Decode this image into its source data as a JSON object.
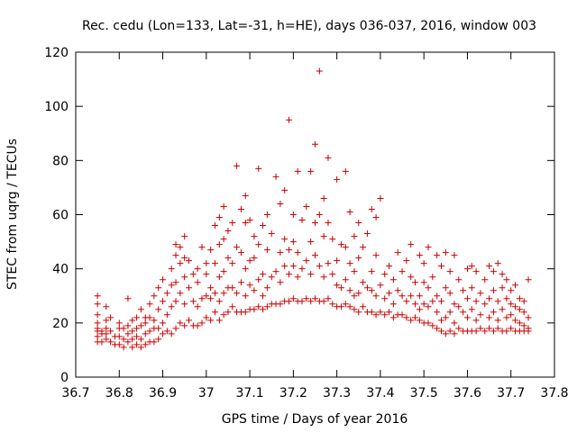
{
  "chart_data": {
    "type": "scatter",
    "title": "Rec. cedu (Lon=133, Lat=-31, h=HE), days 036-037, 2016, window 003",
    "xlabel": "GPS time / Days of year 2016",
    "ylabel": "STEC from uqrg / TECUs",
    "xlim": [
      36.7,
      37.8
    ],
    "ylim": [
      0,
      120
    ],
    "xticks": [
      "36.7",
      "36.8",
      "36.9",
      "37",
      "37.1",
      "37.2",
      "37.3",
      "37.4",
      "37.5",
      "37.6",
      "37.7",
      "37.8"
    ],
    "yticks": [
      "0",
      "20",
      "40",
      "60",
      "80",
      "100",
      "120"
    ],
    "grid": false,
    "marker": "plus",
    "color": "#cc0000",
    "points": [
      [
        36.75,
        13
      ],
      [
        36.75,
        15
      ],
      [
        36.75,
        17
      ],
      [
        36.75,
        18
      ],
      [
        36.75,
        20
      ],
      [
        36.75,
        23
      ],
      [
        36.75,
        27
      ],
      [
        36.75,
        30
      ],
      [
        36.76,
        13
      ],
      [
        36.76,
        16
      ],
      [
        36.76,
        17
      ],
      [
        36.77,
        14
      ],
      [
        36.77,
        16
      ],
      [
        36.77,
        18
      ],
      [
        36.77,
        21
      ],
      [
        36.77,
        26
      ],
      [
        36.78,
        13
      ],
      [
        36.78,
        17
      ],
      [
        36.78,
        22
      ],
      [
        36.79,
        12
      ],
      [
        36.79,
        15
      ],
      [
        36.8,
        12
      ],
      [
        36.8,
        15
      ],
      [
        36.8,
        18
      ],
      [
        36.8,
        20
      ],
      [
        36.81,
        11
      ],
      [
        36.81,
        14
      ],
      [
        36.81,
        18
      ],
      [
        36.82,
        13
      ],
      [
        36.82,
        16
      ],
      [
        36.82,
        19
      ],
      [
        36.82,
        29
      ],
      [
        36.83,
        11
      ],
      [
        36.83,
        14
      ],
      [
        36.83,
        17
      ],
      [
        36.83,
        21
      ],
      [
        36.84,
        12
      ],
      [
        36.84,
        15
      ],
      [
        36.84,
        18
      ],
      [
        36.84,
        22
      ],
      [
        36.85,
        11
      ],
      [
        36.85,
        14
      ],
      [
        36.85,
        19
      ],
      [
        36.85,
        25
      ],
      [
        36.86,
        12
      ],
      [
        36.86,
        16
      ],
      [
        36.86,
        20
      ],
      [
        36.86,
        22
      ],
      [
        36.87,
        13
      ],
      [
        36.87,
        17
      ],
      [
        36.87,
        22
      ],
      [
        36.87,
        27
      ],
      [
        36.88,
        13
      ],
      [
        36.88,
        18
      ],
      [
        36.88,
        21
      ],
      [
        36.88,
        30
      ],
      [
        36.89,
        14
      ],
      [
        36.89,
        18
      ],
      [
        36.89,
        25
      ],
      [
        36.89,
        33
      ],
      [
        36.9,
        16
      ],
      [
        36.9,
        20
      ],
      [
        36.9,
        28
      ],
      [
        36.9,
        36
      ],
      [
        36.91,
        17
      ],
      [
        36.91,
        23
      ],
      [
        36.91,
        31
      ],
      [
        36.92,
        16
      ],
      [
        36.92,
        26
      ],
      [
        36.92,
        34
      ],
      [
        36.92,
        40
      ],
      [
        36.93,
        18
      ],
      [
        36.93,
        28
      ],
      [
        36.93,
        35
      ],
      [
        36.93,
        45
      ],
      [
        36.93,
        49
      ],
      [
        36.94,
        20
      ],
      [
        36.94,
        31
      ],
      [
        36.94,
        42
      ],
      [
        36.94,
        48
      ],
      [
        36.95,
        19
      ],
      [
        36.95,
        27
      ],
      [
        36.95,
        37
      ],
      [
        36.95,
        44
      ],
      [
        36.95,
        52
      ],
      [
        36.96,
        21
      ],
      [
        36.96,
        33
      ],
      [
        36.96,
        43
      ],
      [
        36.97,
        19
      ],
      [
        36.97,
        28
      ],
      [
        36.97,
        38
      ],
      [
        36.98,
        19
      ],
      [
        36.98,
        26
      ],
      [
        36.98,
        35
      ],
      [
        36.98,
        40
      ],
      [
        36.99,
        20
      ],
      [
        36.99,
        29
      ],
      [
        36.99,
        48
      ],
      [
        37,
        22
      ],
      [
        37,
        30
      ],
      [
        37,
        38
      ],
      [
        37,
        42
      ],
      [
        37.01,
        21
      ],
      [
        37.01,
        29
      ],
      [
        37.01,
        33
      ],
      [
        37.01,
        47
      ],
      [
        37.02,
        24
      ],
      [
        37.02,
        31
      ],
      [
        37.02,
        42
      ],
      [
        37.02,
        56
      ],
      [
        37.03,
        21
      ],
      [
        37.03,
        28
      ],
      [
        37.03,
        37
      ],
      [
        37.03,
        49
      ],
      [
        37.03,
        59
      ],
      [
        37.04,
        23
      ],
      [
        37.04,
        31
      ],
      [
        37.04,
        39
      ],
      [
        37.04,
        51
      ],
      [
        37.04,
        63
      ],
      [
        37.05,
        24
      ],
      [
        37.05,
        33
      ],
      [
        37.05,
        44
      ],
      [
        37.05,
        54
      ],
      [
        37.06,
        26
      ],
      [
        37.06,
        33
      ],
      [
        37.06,
        42
      ],
      [
        37.06,
        57
      ],
      [
        37.07,
        24
      ],
      [
        37.07,
        31
      ],
      [
        37.07,
        48
      ],
      [
        37.07,
        78
      ],
      [
        37.08,
        24
      ],
      [
        37.08,
        35
      ],
      [
        37.08,
        46
      ],
      [
        37.08,
        62
      ],
      [
        37.09,
        24
      ],
      [
        37.09,
        30
      ],
      [
        37.09,
        40
      ],
      [
        37.09,
        57
      ],
      [
        37.09,
        67
      ],
      [
        37.1,
        25
      ],
      [
        37.1,
        34
      ],
      [
        37.1,
        43
      ],
      [
        37.1,
        58
      ],
      [
        37.11,
        25
      ],
      [
        37.11,
        32
      ],
      [
        37.11,
        44
      ],
      [
        37.11,
        52
      ],
      [
        37.12,
        26
      ],
      [
        37.12,
        36
      ],
      [
        37.12,
        49
      ],
      [
        37.12,
        77
      ],
      [
        37.13,
        25
      ],
      [
        37.13,
        30
      ],
      [
        37.13,
        38
      ],
      [
        37.13,
        56
      ],
      [
        37.14,
        26
      ],
      [
        37.14,
        33
      ],
      [
        37.14,
        47
      ],
      [
        37.14,
        60
      ],
      [
        37.15,
        27
      ],
      [
        37.15,
        37
      ],
      [
        37.15,
        53
      ],
      [
        37.16,
        27
      ],
      [
        37.16,
        39
      ],
      [
        37.16,
        74
      ],
      [
        37.17,
        27
      ],
      [
        37.17,
        35
      ],
      [
        37.17,
        46
      ],
      [
        37.17,
        64
      ],
      [
        37.18,
        28
      ],
      [
        37.18,
        41
      ],
      [
        37.18,
        51
      ],
      [
        37.18,
        69
      ],
      [
        37.19,
        28
      ],
      [
        37.19,
        38
      ],
      [
        37.19,
        47
      ],
      [
        37.19,
        95
      ],
      [
        37.2,
        29
      ],
      [
        37.2,
        41
      ],
      [
        37.2,
        50
      ],
      [
        37.2,
        60
      ],
      [
        37.21,
        28
      ],
      [
        37.21,
        37
      ],
      [
        37.21,
        46
      ],
      [
        37.21,
        76
      ],
      [
        37.22,
        28
      ],
      [
        37.22,
        40
      ],
      [
        37.22,
        58
      ],
      [
        37.23,
        29
      ],
      [
        37.23,
        43
      ],
      [
        37.23,
        63
      ],
      [
        37.24,
        28
      ],
      [
        37.24,
        38
      ],
      [
        37.24,
        50
      ],
      [
        37.24,
        76
      ],
      [
        37.25,
        29
      ],
      [
        37.25,
        45
      ],
      [
        37.25,
        57
      ],
      [
        37.25,
        86
      ],
      [
        37.26,
        28
      ],
      [
        37.26,
        41
      ],
      [
        37.26,
        60
      ],
      [
        37.26,
        113
      ],
      [
        37.27,
        28
      ],
      [
        37.27,
        37
      ],
      [
        37.27,
        52
      ],
      [
        37.27,
        66
      ],
      [
        37.28,
        29
      ],
      [
        37.28,
        42
      ],
      [
        37.28,
        57
      ],
      [
        37.28,
        81
      ],
      [
        37.29,
        27
      ],
      [
        37.29,
        38
      ],
      [
        37.29,
        51
      ],
      [
        37.3,
        26
      ],
      [
        37.3,
        34
      ],
      [
        37.3,
        43
      ],
      [
        37.3,
        73
      ],
      [
        37.31,
        26
      ],
      [
        37.31,
        33
      ],
      [
        37.31,
        49
      ],
      [
        37.32,
        27
      ],
      [
        37.32,
        36
      ],
      [
        37.32,
        48
      ],
      [
        37.32,
        76
      ],
      [
        37.33,
        26
      ],
      [
        37.33,
        32
      ],
      [
        37.33,
        42
      ],
      [
        37.33,
        61
      ],
      [
        37.34,
        25
      ],
      [
        37.34,
        30
      ],
      [
        37.34,
        39
      ],
      [
        37.34,
        52
      ],
      [
        37.35,
        24
      ],
      [
        37.35,
        31
      ],
      [
        37.35,
        44
      ],
      [
        37.35,
        57
      ],
      [
        37.36,
        26
      ],
      [
        37.36,
        35
      ],
      [
        37.36,
        48
      ],
      [
        37.37,
        24
      ],
      [
        37.37,
        33
      ],
      [
        37.37,
        53
      ],
      [
        37.38,
        24
      ],
      [
        37.38,
        32
      ],
      [
        37.38,
        39
      ],
      [
        37.38,
        62
      ],
      [
        37.39,
        23
      ],
      [
        37.39,
        30
      ],
      [
        37.39,
        45
      ],
      [
        37.39,
        59
      ],
      [
        37.4,
        24
      ],
      [
        37.4,
        34
      ],
      [
        37.4,
        66
      ],
      [
        37.41,
        23
      ],
      [
        37.41,
        29
      ],
      [
        37.41,
        38
      ],
      [
        37.42,
        24
      ],
      [
        37.42,
        31
      ],
      [
        37.42,
        41
      ],
      [
        37.43,
        22
      ],
      [
        37.43,
        27
      ],
      [
        37.43,
        36
      ],
      [
        37.44,
        23
      ],
      [
        37.44,
        32
      ],
      [
        37.44,
        46
      ],
      [
        37.45,
        23
      ],
      [
        37.45,
        30
      ],
      [
        37.45,
        39
      ],
      [
        37.46,
        22
      ],
      [
        37.46,
        28
      ],
      [
        37.46,
        43
      ],
      [
        37.47,
        21
      ],
      [
        37.47,
        30
      ],
      [
        37.47,
        37
      ],
      [
        37.47,
        49
      ],
      [
        37.48,
        22
      ],
      [
        37.48,
        27
      ],
      [
        37.48,
        35
      ],
      [
        37.49,
        21
      ],
      [
        37.49,
        25
      ],
      [
        37.49,
        30
      ],
      [
        37.49,
        45
      ],
      [
        37.5,
        20
      ],
      [
        37.5,
        27
      ],
      [
        37.5,
        35
      ],
      [
        37.5,
        42
      ],
      [
        37.51,
        20
      ],
      [
        37.51,
        26
      ],
      [
        37.51,
        33
      ],
      [
        37.51,
        48
      ],
      [
        37.52,
        19
      ],
      [
        37.52,
        28
      ],
      [
        37.52,
        37
      ],
      [
        37.53,
        18
      ],
      [
        37.53,
        24
      ],
      [
        37.53,
        30
      ],
      [
        37.53,
        45
      ],
      [
        37.54,
        17
      ],
      [
        37.54,
        21
      ],
      [
        37.54,
        28
      ],
      [
        37.54,
        41
      ],
      [
        37.55,
        16
      ],
      [
        37.55,
        22
      ],
      [
        37.55,
        33
      ],
      [
        37.55,
        46
      ],
      [
        37.56,
        17
      ],
      [
        37.56,
        24
      ],
      [
        37.56,
        31
      ],
      [
        37.56,
        39
      ],
      [
        37.57,
        16
      ],
      [
        37.57,
        20
      ],
      [
        37.57,
        27
      ],
      [
        37.57,
        45
      ],
      [
        37.58,
        18
      ],
      [
        37.58,
        26
      ],
      [
        37.58,
        36
      ],
      [
        37.59,
        17
      ],
      [
        37.59,
        24
      ],
      [
        37.59,
        32
      ],
      [
        37.6,
        17
      ],
      [
        37.6,
        22
      ],
      [
        37.6,
        29
      ],
      [
        37.6,
        40
      ],
      [
        37.61,
        17
      ],
      [
        37.61,
        25
      ],
      [
        37.61,
        33
      ],
      [
        37.61,
        41
      ],
      [
        37.62,
        17
      ],
      [
        37.62,
        21
      ],
      [
        37.62,
        28
      ],
      [
        37.62,
        39
      ],
      [
        37.63,
        18
      ],
      [
        37.63,
        23
      ],
      [
        37.63,
        31
      ],
      [
        37.64,
        17
      ],
      [
        37.64,
        27
      ],
      [
        37.64,
        36
      ],
      [
        37.65,
        18
      ],
      [
        37.65,
        22
      ],
      [
        37.65,
        29
      ],
      [
        37.65,
        41
      ],
      [
        37.66,
        17
      ],
      [
        37.66,
        24
      ],
      [
        37.66,
        32
      ],
      [
        37.66,
        39
      ],
      [
        37.67,
        18
      ],
      [
        37.67,
        21
      ],
      [
        37.67,
        28
      ],
      [
        37.67,
        42
      ],
      [
        37.68,
        17
      ],
      [
        37.68,
        25
      ],
      [
        37.68,
        33
      ],
      [
        37.68,
        38
      ],
      [
        37.69,
        17
      ],
      [
        37.69,
        22
      ],
      [
        37.69,
        29
      ],
      [
        37.69,
        36
      ],
      [
        37.7,
        18
      ],
      [
        37.7,
        23
      ],
      [
        37.7,
        27
      ],
      [
        37.7,
        32
      ],
      [
        37.71,
        17
      ],
      [
        37.71,
        21
      ],
      [
        37.71,
        26
      ],
      [
        37.71,
        34
      ],
      [
        37.72,
        17
      ],
      [
        37.72,
        20
      ],
      [
        37.72,
        25
      ],
      [
        37.72,
        29
      ],
      [
        37.73,
        17
      ],
      [
        37.73,
        19
      ],
      [
        37.73,
        24
      ],
      [
        37.73,
        28
      ],
      [
        37.74,
        17
      ],
      [
        37.74,
        18
      ],
      [
        37.74,
        22
      ],
      [
        37.74,
        36
      ]
    ]
  }
}
